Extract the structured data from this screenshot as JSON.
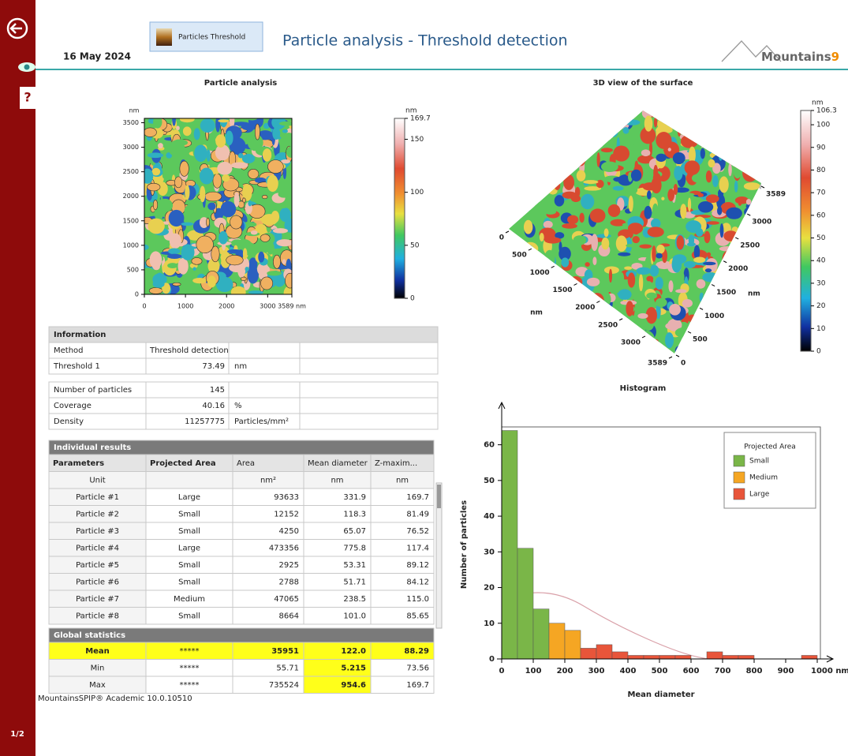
{
  "header": {
    "date": "16 May 2024",
    "button": "Particles Threshold",
    "title": "Particle analysis - Threshold detection",
    "logo": "Mountains",
    "logo_version": "9"
  },
  "sidebar": {
    "help": "?",
    "page": "1/2"
  },
  "particle_map": {
    "title": "Particle analysis",
    "unit": "nm",
    "xlim": [
      0,
      3589
    ],
    "ylim": [
      0,
      3589
    ],
    "xticks": [
      0,
      1000,
      2000,
      3000,
      {
        "value": 3589,
        "label": "3589 nm"
      }
    ],
    "yticks": [
      0,
      500,
      1000,
      1500,
      2000,
      2500,
      3000,
      3500
    ],
    "colorbar": {
      "unit": "nm",
      "lim": [
        0,
        169.7
      ],
      "ticks": [
        0,
        50,
        100,
        150,
        169.7
      ]
    }
  },
  "surface_3d": {
    "title": "3D view of the surface",
    "lim": [
      0,
      3589
    ],
    "left_ticks": [
      0,
      500,
      1000,
      1500,
      2000,
      2500,
      3000,
      3589
    ],
    "left_unit": "nm",
    "right_ticks": [
      3589,
      3000,
      2500,
      2000,
      1500,
      1000,
      500,
      0
    ],
    "right_unit": "nm",
    "colorbar": {
      "unit": "nm",
      "lim": [
        0,
        106.3
      ],
      "ticks": [
        0,
        10,
        20,
        30,
        40,
        50,
        60,
        70,
        80,
        90,
        100,
        106.3
      ]
    }
  },
  "information": {
    "title": "Information",
    "rows": [
      [
        "Method",
        "Threshold detection"
      ],
      [
        "Threshold 1",
        "73.49",
        "nm"
      ],
      [
        "Number of particles",
        "145"
      ],
      [
        "Coverage",
        "40.16",
        "%"
      ],
      [
        "Density",
        "11257775",
        "Particles/mm²"
      ]
    ]
  },
  "individual_results": {
    "title": "Individual results",
    "columns": [
      "Parameters",
      "Projected Area",
      "Area",
      "Mean diameter",
      "Z-maxim..."
    ],
    "unit_row": [
      "Unit",
      null,
      "nm²",
      "nm",
      "nm"
    ],
    "rows": [
      [
        "Particle #1",
        "Large",
        "93633",
        "331.9",
        "169.7"
      ],
      [
        "Particle #2",
        "Small",
        "12152",
        "118.3",
        "81.49"
      ],
      [
        "Particle #3",
        "Small",
        "4250",
        "65.07",
        "76.52"
      ],
      [
        "Particle #4",
        "Large",
        "473356",
        "775.8",
        "117.4"
      ],
      [
        "Particle #5",
        "Small",
        "2925",
        "53.31",
        "89.12"
      ],
      [
        "Particle #6",
        "Small",
        "2788",
        "51.71",
        "84.12"
      ],
      [
        "Particle #7",
        "Medium",
        "47065",
        "238.5",
        "115.0"
      ],
      [
        "Particle #8",
        "Small",
        "8664",
        "101.0",
        "85.65"
      ]
    ]
  },
  "global_statistics": {
    "title": "Global statistics",
    "rows": [
      [
        "Mean",
        "*****",
        "35951",
        "122.0",
        "88.29"
      ],
      [
        "Min",
        "*****",
        "55.71",
        "5.215",
        "73.56"
      ],
      [
        "Max",
        "*****",
        "735524",
        "954.6",
        "169.7"
      ]
    ]
  },
  "histogram": {
    "type": "histogram",
    "title": "Histogram",
    "x_label": "Mean diameter",
    "y_label": "Number of particles",
    "legend_title": "Projected Area",
    "bins": [
      0,
      50,
      100,
      150,
      200,
      250,
      300,
      350,
      400,
      450,
      500,
      550,
      600,
      650,
      700,
      750,
      800,
      850,
      900,
      950,
      1000
    ],
    "series": [
      {
        "name": "Small",
        "color": "#7ab648",
        "values": [
          64,
          31,
          14,
          0,
          0,
          0,
          0,
          0,
          0,
          0,
          0,
          0,
          0,
          0,
          0,
          0,
          0,
          0,
          0,
          0
        ]
      },
      {
        "name": "Medium",
        "color": "#f5a623",
        "values": [
          0,
          0,
          0,
          10,
          8,
          0,
          0,
          0,
          0,
          0,
          0,
          0,
          0,
          0,
          0,
          0,
          0,
          0,
          0,
          0
        ]
      },
      {
        "name": "Large",
        "color": "#e8553a",
        "values": [
          0,
          0,
          0,
          0,
          0,
          3,
          4,
          2,
          1,
          1,
          1,
          1,
          0,
          2,
          1,
          1,
          0,
          0,
          0,
          1
        ]
      }
    ],
    "xlim": [
      0,
      1000
    ],
    "ylim": [
      0,
      65
    ],
    "xticks": [
      0,
      100,
      200,
      300,
      400,
      500,
      600,
      700,
      800,
      900,
      {
        "value": 1000,
        "label": "1000 nm"
      }
    ],
    "yticks": [
      0,
      10,
      20,
      30,
      40,
      50,
      60
    ]
  },
  "footer": {
    "text": "MountainsSPIP® Academic 10.0.10510"
  }
}
